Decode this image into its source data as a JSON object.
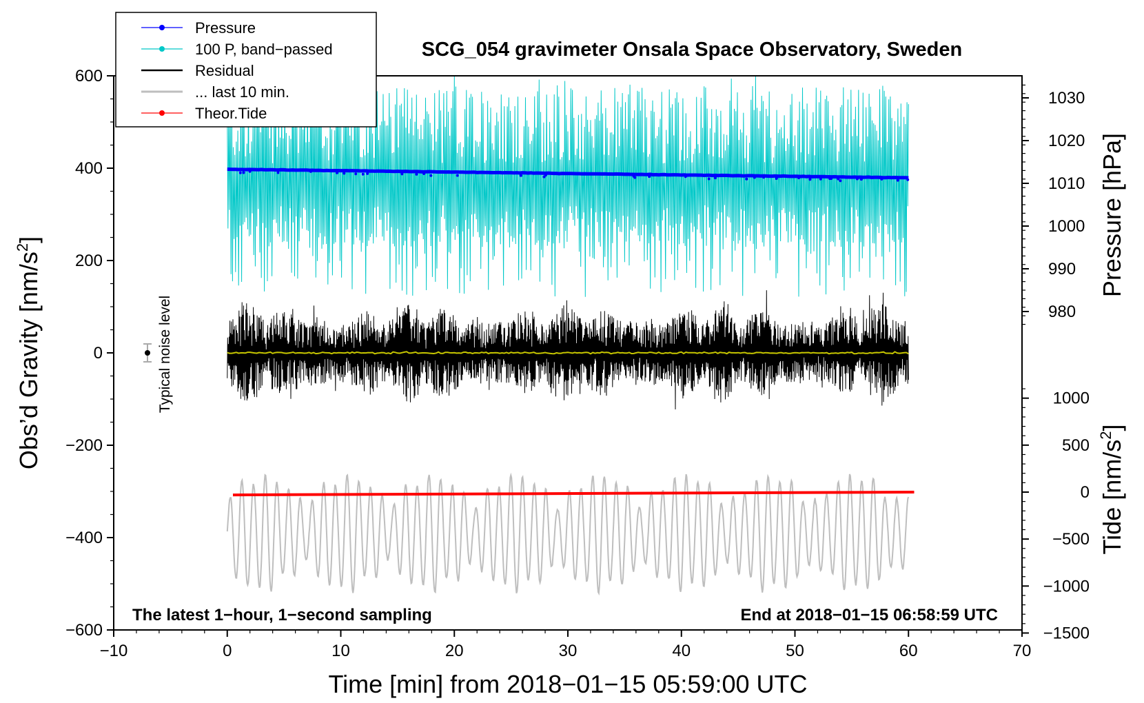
{
  "chart_data": {
    "type": "line",
    "title": "SCG_054 gravimeter Onsala Space Observatory, Sweden",
    "xlabel": "Time [min] from 2018−01−15 05:59:00 UTC",
    "ylabel_left_main": "Obs’d Gravity [nm/s",
    "ylabel_left_sup": "2",
    "ylabel_left_end": "]",
    "ylabel_right_pressure": "Pressure [hPa]",
    "ylabel_right_tide_main": "Tide [nm/s",
    "ylabel_right_tide_sup": "2",
    "ylabel_right_tide_end": "]",
    "xlim": [
      -10,
      70
    ],
    "ylim": [
      -600,
      600
    ],
    "x_ticks": [
      "−10",
      "0",
      "10",
      "20",
      "30",
      "40",
      "50",
      "60",
      "70"
    ],
    "y_ticks": [
      "−600",
      "−400",
      "−200",
      "0",
      "200",
      "400",
      "600"
    ],
    "pressure_ticks": [
      "980",
      "990",
      "1000",
      "1010",
      "1020",
      "1030"
    ],
    "tide_ticks": [
      "−1500",
      "−1000",
      "−500",
      "0",
      "500",
      "1000"
    ],
    "pressure_range_hpa": [
      980,
      1030
    ],
    "tide_range_nms2": [
      -1500,
      1000
    ],
    "annotation_left": "The latest 1−hour, 1−second sampling",
    "annotation_right": "End at 2018−01−15 06:58:59 UTC",
    "noise_label": "Typical noise level",
    "legend": [
      {
        "label": "Pressure",
        "color": "#0000ff",
        "marker": "dot"
      },
      {
        "label": "100 P, band−passed",
        "color": "#00c8c8",
        "marker": "dot"
      },
      {
        "label": "Residual",
        "color": "#000000",
        "marker": "none"
      },
      {
        "label": "... last 10 min.",
        "color": "#bebebe",
        "marker": "none"
      },
      {
        "label": "Theor.Tide",
        "color": "#ff0000",
        "marker": "dot"
      }
    ],
    "series": [
      {
        "name": "Pressure",
        "axis": "pressure",
        "x_range": [
          0,
          60
        ],
        "start_hpa": 1013.3,
        "end_hpa": 1011.3
      },
      {
        "name": "100 P, band−passed",
        "axis": "gravity",
        "x_range": [
          0,
          60
        ],
        "center": 350,
        "spike_max": 600,
        "dip_min": 120
      },
      {
        "name": "Residual",
        "axis": "gravity",
        "x_range": [
          0,
          60
        ],
        "center": 0,
        "envelope": 150
      },
      {
        "name": "... last 10 min.",
        "axis": "gravity",
        "x_range": [
          0,
          60
        ],
        "center": -390,
        "envelope": 110
      },
      {
        "name": "Theor.Tide",
        "axis": "tide",
        "x_range": [
          0.5,
          60.5
        ],
        "start": -30,
        "end": 0
      }
    ],
    "noise_bar": {
      "x": -7,
      "y": 0,
      "err": 20
    }
  }
}
